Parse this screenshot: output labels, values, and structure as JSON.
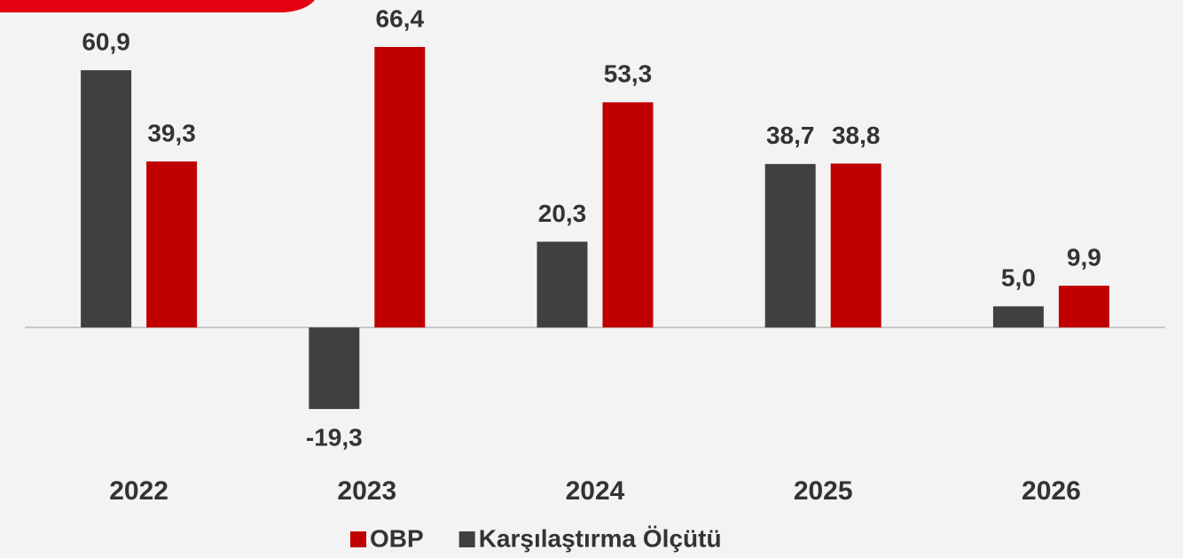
{
  "chart_data": {
    "type": "bar",
    "categories": [
      "2022",
      "2023",
      "2024",
      "2025",
      "2026"
    ],
    "series": [
      {
        "name": "Karşılaştırma Ölçütü",
        "color": "#404040",
        "values": [
          60.9,
          -19.3,
          20.3,
          38.7,
          5.0
        ],
        "value_labels": [
          "60,9",
          "-19,3",
          "20,3",
          "38,7",
          "5,0"
        ]
      },
      {
        "name": "OBP",
        "color": "#c00000",
        "values": [
          39.3,
          66.4,
          53.3,
          38.8,
          9.9
        ],
        "value_labels": [
          "39,3",
          "66,4",
          "53,3",
          "38,8",
          "9,9"
        ]
      }
    ],
    "legend_order": [
      "OBP",
      "Karşılaştırma Ölçütü"
    ],
    "ylim": [
      -30,
      75
    ]
  }
}
